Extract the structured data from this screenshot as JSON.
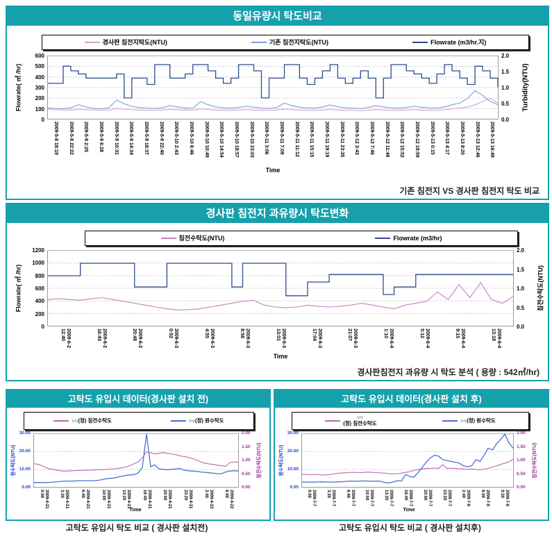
{
  "page": {
    "background": "#ffffff",
    "accent_teal": "#16a0ac"
  },
  "chart_data": [
    {
      "type": "line",
      "title": "동일유량시 탁도비교",
      "caption": "기존 침전지 VS 경사판 침전지 탁도 비교",
      "xlabel": "Time",
      "legend": [
        {
          "label": "경사판 침전지탁도(NTU)",
          "color": "#d9a0cc"
        },
        {
          "label": "기존 침전지탁도(NTU)",
          "color": "#7e9ddb"
        },
        {
          "label": "Flowrate (m3/hr.지)",
          "color": "#2e4a8e"
        }
      ],
      "left_axis": {
        "label": "Flowrate( ㎥ /hr)",
        "min": 0,
        "max": 600,
        "tick_values": [
          0,
          100,
          200,
          300,
          400,
          500,
          600
        ],
        "tick_labels": [
          "0",
          "100",
          "200",
          "300",
          "400",
          "500",
          "600"
        ],
        "color": "#000000"
      },
      "right_axis": {
        "label": "Turbidity(NTU)",
        "min": 0,
        "max": 2,
        "tick_values": [
          0,
          0.5,
          1,
          1.5,
          2
        ],
        "tick_labels": [
          "0.0",
          "0.5",
          "1.0",
          "1.5",
          "2.0"
        ],
        "color": "#000000"
      },
      "x_ticks": [
        "2009-5-8 18:19",
        "2009-5-8 22:22",
        "2009-5-9 2:25",
        "2009-5-9 6:28",
        "2009-5-9 10:31",
        "2009-5-9 14:34",
        "2009-5-9 18:37",
        "2009-5-9 22:40",
        "2009-5-10 2:43",
        "2009-5-10 6:46",
        "2009-5-10 10:49",
        "2009-5-10 14:54",
        "2009-5-10 18:57",
        "2009-5-10 23:03",
        "2009-5-11 3:06",
        "2009-5-11 7:09",
        "2009-5-11 11:12",
        "2009-5-11 15:15",
        "2009-5-11 19:19",
        "2009-5-11 23:35",
        "2009-5-12 3:43",
        "2009-5-12 7:46",
        "2009-5-12 11:49",
        "2009-5-12 15:52",
        "2009-5-12 19:59",
        "2009-5-13 0:15",
        "2009-5-13 4:17",
        "2009-5-13 8:20",
        "2009-5-13 12:46",
        "2009-5-13 16:49"
      ],
      "series": [
        {
          "name": "Flowrate (m3/hr.지)",
          "axis": "left",
          "color": "#2e4a8e",
          "step": true,
          "values": [
            340,
            340,
            505,
            460,
            430,
            390,
            390,
            390,
            390,
            430,
            200,
            390,
            390,
            330,
            520,
            520,
            390,
            390,
            430,
            520,
            520,
            460,
            390,
            340,
            390,
            520,
            520,
            460,
            200,
            390,
            390,
            520,
            520,
            390,
            330,
            390,
            460,
            520,
            390,
            340,
            390,
            460,
            390,
            200,
            390,
            520,
            520,
            460,
            430,
            390,
            340,
            430,
            520,
            460,
            390,
            330,
            505,
            460,
            390,
            300
          ]
        },
        {
          "name": "기존 침전지탁도(NTU)",
          "axis": "right",
          "color": "#7e9ddb",
          "values": [
            0.35,
            0.33,
            0.32,
            0.35,
            0.45,
            0.38,
            0.33,
            0.32,
            0.35,
            0.6,
            0.48,
            0.4,
            0.36,
            0.34,
            0.33,
            0.35,
            0.42,
            0.38,
            0.35,
            0.33,
            0.55,
            0.45,
            0.38,
            0.35,
            0.34,
            0.36,
            0.4,
            0.37,
            0.34,
            0.33,
            0.36,
            0.5,
            0.42,
            0.37,
            0.35,
            0.34,
            0.38,
            0.44,
            0.39,
            0.35,
            0.34,
            0.33,
            0.36,
            0.42,
            0.38,
            0.35,
            0.34,
            0.36,
            0.4,
            0.37,
            0.35,
            0.34,
            0.38,
            0.45,
            0.5,
            0.65,
            0.9,
            0.75,
            0.55,
            0.45
          ]
        },
        {
          "name": "경사판 침전지탁도(NTU)",
          "axis": "right",
          "color": "#d9a0cc",
          "values": [
            0.3,
            0.29,
            0.28,
            0.28,
            0.3,
            0.29,
            0.28,
            0.27,
            0.28,
            0.33,
            0.31,
            0.29,
            0.28,
            0.27,
            0.27,
            0.28,
            0.3,
            0.29,
            0.28,
            0.27,
            0.32,
            0.3,
            0.28,
            0.27,
            0.27,
            0.28,
            0.29,
            0.28,
            0.27,
            0.27,
            0.28,
            0.31,
            0.29,
            0.28,
            0.27,
            0.27,
            0.28,
            0.3,
            0.28,
            0.27,
            0.27,
            0.26,
            0.27,
            0.29,
            0.28,
            0.27,
            0.27,
            0.28,
            0.29,
            0.28,
            0.27,
            0.27,
            0.29,
            0.32,
            0.34,
            0.38,
            0.45,
            0.55,
            0.65,
            0.5
          ]
        }
      ]
    },
    {
      "type": "line",
      "title": "경사판 침전지 과유량시 탁도변화",
      "caption": "경사판침전지 과유량 시 탁도 분석 ( 용량 : 542㎥/hr)",
      "xlabel": "Time",
      "legend": [
        {
          "label": "침전수탁도(NTU)",
          "color": "#c87fc4"
        },
        {
          "label": "Flowrate (m3/hr)",
          "color": "#2e4a8e"
        }
      ],
      "left_axis": {
        "label": "Flowrate( ㎥ /hr)",
        "min": 0,
        "max": 1200,
        "tick_values": [
          0,
          200,
          400,
          600,
          800,
          1000,
          1200
        ],
        "tick_labels": [
          "0",
          "200",
          "400",
          "600",
          "800",
          "1000",
          "1200"
        ],
        "color": "#000000"
      },
      "right_axis": {
        "label": "침전수탁도(NTU)",
        "min": 0,
        "max": 2,
        "tick_values": [
          0,
          0.5,
          1,
          1.5,
          2
        ],
        "tick_labels": [
          "0.0",
          "0.5",
          "1.0",
          "1.5",
          "2.0"
        ],
        "color": "#000000"
      },
      "x_ticks": [
        "2009-6-2\n12:40",
        "2009-6-2\n16:43",
        "2009-6-2\n20:48",
        "2009-6-3\n0:52",
        "2009-6-3\n4:55",
        "2009-6-3\n8:58",
        "2009-6-3\n13:01",
        "2009-6-3\n17:04",
        "2009-6-3\n21:07",
        "2009-6-4\n1:10",
        "2009-6-4\n5:12",
        "2009-6-4\n9:15",
        "2009-6-4\n13:18"
      ],
      "series": [
        {
          "name": "Flowrate (m3/hr)",
          "axis": "left",
          "color": "#2e4a8e",
          "step": true,
          "values": [
            800,
            800,
            800,
            1000,
            1000,
            1000,
            1000,
            1000,
            620,
            620,
            620,
            1000,
            1000,
            1000,
            1000,
            1000,
            1000,
            620,
            1000,
            1000,
            1000,
            1000,
            480,
            480,
            700,
            700,
            820,
            820,
            820,
            820,
            820,
            500,
            620,
            620,
            820,
            820,
            820,
            820,
            820,
            820,
            820,
            820,
            820,
            820
          ]
        },
        {
          "name": "침전수탁도(NTU)",
          "axis": "right",
          "color": "#c87fc4",
          "values": [
            0.7,
            0.72,
            0.7,
            0.68,
            0.72,
            0.75,
            0.7,
            0.65,
            0.6,
            0.55,
            0.5,
            0.45,
            0.42,
            0.43,
            0.45,
            0.5,
            0.55,
            0.6,
            0.65,
            0.68,
            0.55,
            0.5,
            0.48,
            0.5,
            0.55,
            0.52,
            0.5,
            0.52,
            0.55,
            0.6,
            0.55,
            0.5,
            0.45,
            0.55,
            0.6,
            0.65,
            0.9,
            0.7,
            1.1,
            0.75,
            1.15,
            0.7,
            0.6,
            0.78
          ]
        }
      ]
    },
    {
      "type": "line",
      "title": "고탁도 유입시 데이터(경사판 설치 전)",
      "caption": "고탁도 유입시 탁도 비교 ( 경사판 설치전)",
      "xlabel": "Time",
      "legend": [
        {
          "label": "○○(정) 침전수탁도",
          "color": "#bb66b0"
        },
        {
          "label": "○○(정) 원수탁도",
          "color": "#4a6fd0"
        }
      ],
      "left_axis": {
        "label": "원수탁도(NTU)",
        "min": 0,
        "max": 30,
        "tick_values": [
          0,
          10,
          20,
          30
        ],
        "tick_labels": [
          "0.00",
          "10.00",
          "20.00",
          "30.00"
        ],
        "color": "#2244cc"
      },
      "right_axis": {
        "label": "침전수탁도(NTU)",
        "min": 0,
        "max": 2,
        "tick_values": [
          0,
          0.5,
          1,
          1.5,
          2
        ],
        "tick_labels": [
          "0.00",
          "0.50",
          "1.00",
          "1.50",
          "2.00"
        ],
        "color": "#993399"
      },
      "x_ticks": [
        "2009-4-21\n0:00",
        "2009-4-21\n3:20",
        "2009-4-21\n6:40",
        "2009-4-21\n10:00",
        "2009-4-21\n13:20",
        "2009-4-21\n16:40",
        "2009-4-21\n20:00",
        "2009-4-21\n23:20",
        "2009-4-22\n2:40",
        "2009-4-22\n6:00"
      ],
      "series": [
        {
          "name": "○○(정) 원수탁도",
          "axis": "left",
          "color": "#4a6fd0",
          "values": [
            2.5,
            2.5,
            2.5,
            2.5,
            2.6,
            2.8,
            3.0,
            3.2,
            3.3,
            3.3,
            3.4,
            3.5,
            3.5,
            3.6,
            3.5,
            3.6,
            4.0,
            4.5,
            4.8,
            5.0,
            5.5,
            6.0,
            6.5,
            6.8,
            7.0,
            8.0,
            11.0,
            30.0,
            11.5,
            12.5,
            10.2,
            10.0,
            9.8,
            10.0,
            10.2,
            10.5,
            9.5,
            9.2,
            9.0,
            8.8,
            8.5,
            8.3,
            8.0,
            7.8,
            7.5,
            7.5,
            8.5,
            9.0,
            9.2,
            9.0
          ]
        },
        {
          "name": "○○(정) 침전수탁도",
          "axis": "right",
          "color": "#bb66b0",
          "values": [
            0.88,
            0.85,
            0.8,
            0.72,
            0.68,
            0.65,
            0.62,
            0.6,
            0.6,
            0.61,
            0.62,
            0.62,
            0.63,
            0.63,
            0.64,
            0.65,
            0.65,
            0.66,
            0.67,
            0.68,
            0.7,
            0.72,
            0.75,
            0.8,
            0.88,
            0.95,
            1.1,
            1.33,
            1.3,
            1.25,
            1.28,
            1.3,
            1.27,
            1.25,
            1.22,
            1.18,
            1.15,
            1.12,
            1.08,
            1.02,
            0.95,
            0.9,
            0.87,
            0.85,
            0.82,
            0.8,
            0.78,
            0.92,
            0.95,
            0.93
          ]
        }
      ]
    },
    {
      "type": "line",
      "title": "고탁도 유입시 데이터(경사판 설치 후)",
      "caption": "고탁도 유입시 탁도 비교 ( 경사판 설치후)",
      "xlabel": "Time",
      "legend": [
        {
          "label": "○○\n(정) 침전수탁도",
          "color": "#bb66b0"
        },
        {
          "label": "○○(정) 원수탁도",
          "color": "#4a6fd0"
        }
      ],
      "left_axis": {
        "label": "원수탁도(NTU)",
        "min": 0,
        "max": 30,
        "tick_values": [
          0,
          10,
          20,
          30
        ],
        "tick_labels": [
          "0.00",
          "10.00",
          "20.00",
          "30.00"
        ],
        "color": "#2244cc"
      },
      "right_axis": {
        "label": "침전수탁도(NTU)",
        "min": 0,
        "max": 2,
        "tick_values": [
          0,
          0.5,
          1,
          1.5,
          2
        ],
        "tick_labels": [
          "0.00",
          "0.50",
          "1.00",
          "1.50",
          "2.00"
        ],
        "color": "#993399"
      },
      "x_ticks": [
        "2009-7-7\n0:00",
        "2009-7-7\n3:20",
        "2009-7-7\n6:40",
        "2009-7-7\n10:00",
        "2009-7-7\n13:20",
        "2009-7-7\n16:40",
        "2009-7-7\n20:00",
        "2009-7-7\n23:20",
        "2009-7-8\n2:40",
        "2009-7-8\n6:00",
        "2009-7-8\n9:20"
      ],
      "series": [
        {
          "name": "○○(정) 원수탁도",
          "axis": "left",
          "color": "#4a6fd0",
          "values": [
            2.8,
            2.7,
            2.8,
            2.7,
            2.8,
            2.9,
            2.8,
            2.7,
            2.8,
            2.9,
            3.0,
            3.2,
            3.3,
            3.2,
            3.3,
            3.4,
            3.3,
            3.2,
            3.3,
            3.2,
            2.5,
            2.2,
            2.8,
            3.5,
            3.3,
            7.0,
            6.0,
            5.5,
            8.0,
            11.0,
            14.0,
            16.5,
            18.0,
            17.5,
            15.5,
            15.0,
            14.5,
            14.0,
            13.5,
            12.0,
            11.5,
            12.0,
            15.5,
            14.5,
            18.0,
            22.0,
            21.0,
            24.5,
            27.0,
            30.0,
            25.0,
            22.0
          ]
        },
        {
          "name": "○○(정) 침전수탁도",
          "axis": "right",
          "color": "#bb66b0",
          "values": [
            0.48,
            0.47,
            0.46,
            0.47,
            0.46,
            0.45,
            0.46,
            0.47,
            0.5,
            0.52,
            0.53,
            0.54,
            0.55,
            0.55,
            0.54,
            0.55,
            0.56,
            0.55,
            0.54,
            0.53,
            0.52,
            0.5,
            0.49,
            0.5,
            0.52,
            0.55,
            0.58,
            0.62,
            0.66,
            0.68,
            0.7,
            0.7,
            0.71,
            0.7,
            0.85,
            0.7,
            0.71,
            0.7,
            0.69,
            0.68,
            0.67,
            0.68,
            0.66,
            0.65,
            0.67,
            0.7,
            0.75,
            0.8,
            0.85,
            0.9,
            0.95,
            1.05
          ]
        }
      ]
    }
  ]
}
